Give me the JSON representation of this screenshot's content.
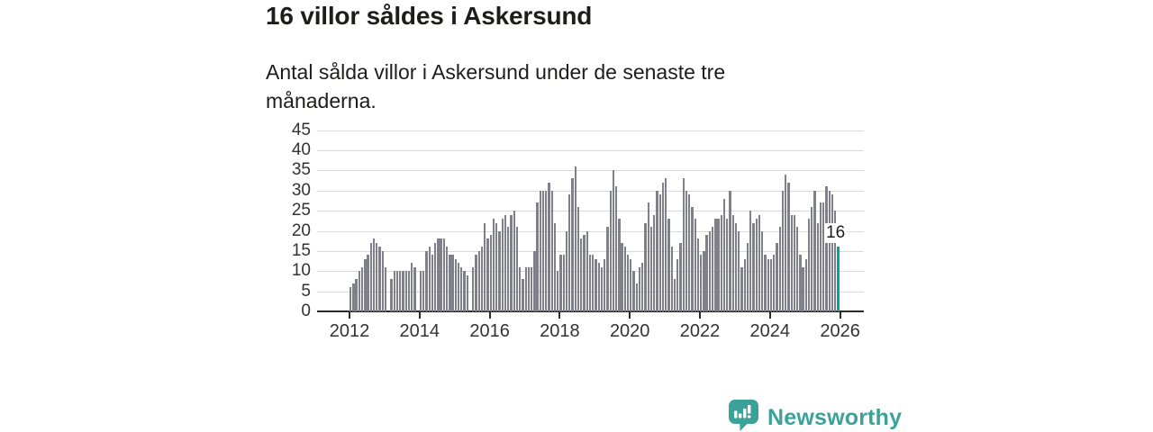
{
  "header": {
    "title": "16 villor såldes i Askersund",
    "subtitle": "Antal sålda villor i Askersund under de senaste tre månaderna."
  },
  "chart_data": {
    "type": "bar",
    "title": "16 villor såldes i Askersund",
    "description": "Antal sålda villor i Askersund under de senaste tre månaderna.",
    "frequency": "monthly",
    "start": "2012-01",
    "end": "2025-12",
    "xlabel": "",
    "ylabel": "",
    "x_tick_labels": [
      "2012",
      "2014",
      "2016",
      "2018",
      "2020",
      "2022",
      "2024",
      "2026"
    ],
    "y_ticks": [
      0,
      5,
      10,
      15,
      20,
      25,
      30,
      35,
      40,
      45
    ],
    "ylim": [
      0,
      45
    ],
    "grid": true,
    "legend": "none",
    "bar_color": "#80808a",
    "highlight_color": "#00a59d",
    "annotation": "16",
    "annotated_last_value": 16,
    "values": [
      6,
      7,
      8,
      10,
      11,
      13,
      14,
      17,
      18,
      17,
      16,
      15,
      11,
      0,
      8,
      10,
      10,
      10,
      10,
      10,
      10,
      12,
      11,
      0,
      10,
      10,
      15,
      16,
      14,
      17,
      18,
      18,
      18,
      16,
      14,
      14,
      13,
      12,
      11,
      10,
      9,
      0,
      11,
      14,
      15,
      16,
      22,
      18,
      19,
      23,
      22,
      20,
      23,
      24,
      21,
      24,
      25,
      21,
      11,
      8,
      11,
      11,
      11,
      15,
      27,
      30,
      30,
      30,
      32,
      30,
      22,
      10,
      14,
      14,
      20,
      29,
      33,
      36,
      26,
      18,
      19,
      20,
      14,
      14,
      13,
      12,
      11,
      13,
      21,
      30,
      35,
      31,
      23,
      17,
      16,
      14,
      13,
      10,
      7,
      11,
      12,
      22,
      27,
      21,
      24,
      30,
      29,
      32,
      33,
      23,
      16,
      8,
      13,
      17,
      33,
      30,
      29,
      26,
      23,
      18,
      14,
      15,
      19,
      20,
      21,
      23,
      23,
      24,
      28,
      23,
      30,
      24,
      22,
      20,
      11,
      13,
      17,
      25,
      22,
      23,
      24,
      20,
      14,
      13,
      13,
      14,
      17,
      21,
      30,
      34,
      32,
      24,
      24,
      21,
      14,
      11,
      13,
      23,
      26,
      30,
      22,
      27,
      27,
      31,
      30,
      29,
      25,
      16
    ]
  },
  "branding": {
    "logo_text": "Newsworthy",
    "brand_color": "#3ba29a"
  }
}
